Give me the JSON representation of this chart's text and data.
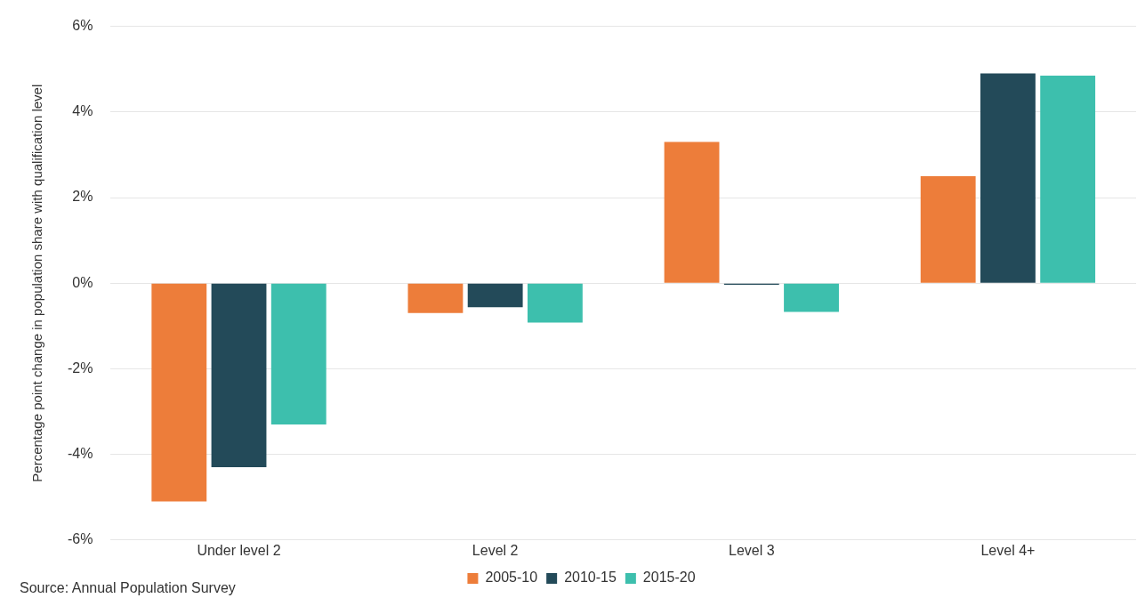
{
  "chart_data": {
    "type": "bar",
    "ylabel": "Percentage point change in population share with qualification level",
    "categories": [
      "Under level 2",
      "Level 2",
      "Level 3",
      "Level 4+"
    ],
    "series": [
      {
        "name": "2005-10",
        "color": "#ed7d3a",
        "values": [
          -5.1,
          -0.7,
          3.3,
          2.5
        ]
      },
      {
        "name": "2010-15",
        "color": "#234a59",
        "values": [
          -4.3,
          -0.56,
          -0.04,
          4.9
        ]
      },
      {
        "name": "2015-20",
        "color": "#3dbfad",
        "values": [
          -3.3,
          -0.92,
          -0.67,
          4.85
        ]
      }
    ],
    "ylim": [
      -6,
      6
    ],
    "yticks": [
      {
        "value": -6,
        "label": "-6%"
      },
      {
        "value": -4,
        "label": "-4%"
      },
      {
        "value": -2,
        "label": "-2%"
      },
      {
        "value": 0,
        "label": "0%"
      },
      {
        "value": 2,
        "label": "2%"
      },
      {
        "value": 4,
        "label": "4%"
      },
      {
        "value": 6,
        "label": "6%"
      }
    ],
    "grid": "y",
    "legend": "bottom",
    "annotations": [
      "Source: Annual Population Survey"
    ]
  }
}
